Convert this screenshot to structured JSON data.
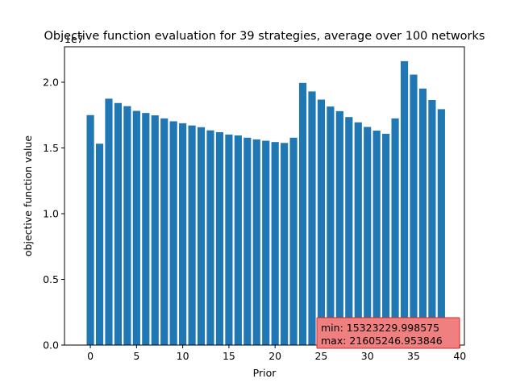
{
  "chart_data": {
    "type": "bar",
    "title": "Objective function evaluation for 39 strategies, average over 100 networks",
    "xlabel": "Prior",
    "ylabel": "objective function value",
    "y_scale_label": "1e7",
    "xlim": [
      -2.8,
      40.5
    ],
    "ylim": [
      0,
      22700000.0
    ],
    "x_ticks": [
      0,
      5,
      10,
      15,
      20,
      25,
      30,
      35,
      40
    ],
    "x_tick_labels": [
      "0",
      "5",
      "10",
      "15",
      "20",
      "25",
      "30",
      "35",
      "40"
    ],
    "y_ticks": [
      0,
      5000000,
      10000000,
      15000000,
      20000000
    ],
    "y_tick_labels": [
      "0.0",
      "0.5",
      "1.0",
      "1.5",
      "2.0"
    ],
    "grid": false,
    "bar_color": "#1f77b4",
    "x": [
      0,
      1,
      2,
      3,
      4,
      5,
      6,
      7,
      8,
      9,
      10,
      11,
      12,
      13,
      14,
      15,
      16,
      17,
      18,
      19,
      20,
      21,
      22,
      23,
      24,
      25,
      26,
      27,
      28,
      29,
      30,
      31,
      32,
      33,
      34,
      35,
      36,
      37,
      38
    ],
    "values": [
      17500000,
      15323230,
      18750000,
      18420000,
      18180000,
      17820000,
      17660000,
      17480000,
      17250000,
      17030000,
      16880000,
      16710000,
      16580000,
      16340000,
      16200000,
      16020000,
      15950000,
      15780000,
      15650000,
      15550000,
      15450000,
      15380000,
      15780000,
      19950000,
      19300000,
      18680000,
      18150000,
      17800000,
      17350000,
      16950000,
      16600000,
      16320000,
      16080000,
      17250000,
      21605247,
      20580000,
      19520000,
      18650000,
      17950000
    ],
    "annotation": {
      "lines": [
        "min: 15323229.998575",
        "max: 21605246.953846"
      ],
      "background": "#f08080",
      "border": "#d62728",
      "placement": "bottom-right"
    }
  }
}
